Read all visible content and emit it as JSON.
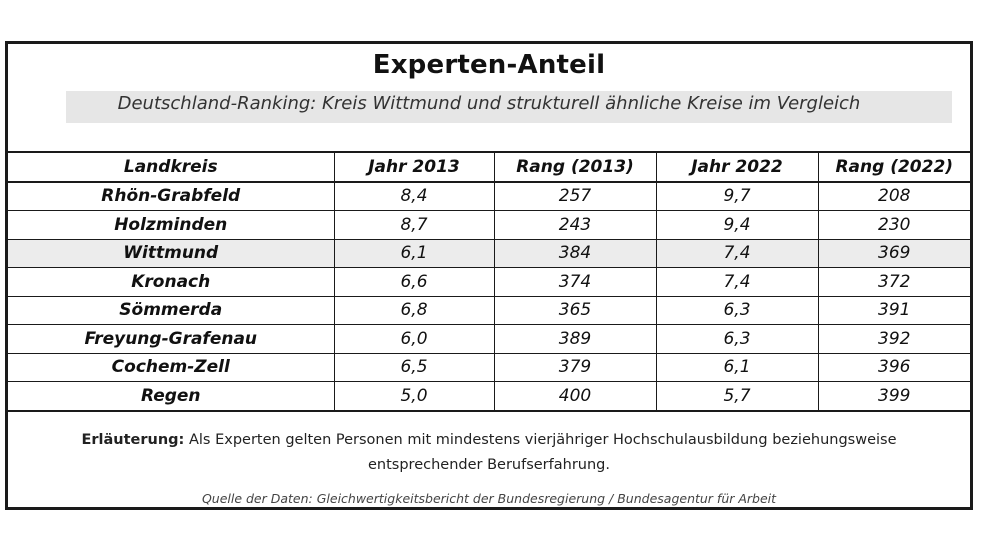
{
  "header": {
    "title": "Experten-Anteil",
    "subtitle": "Deutschland-Ranking: Kreis Wittmund und strukturell ähnliche Kreise im Vergleich"
  },
  "table": {
    "columns": [
      "Landkreis",
      "Jahr 2013",
      "Rang (2013)",
      "Jahr 2022",
      "Rang (2022)"
    ],
    "rows": [
      [
        "Rhön-Grabfeld",
        "8,4",
        "257",
        "9,7",
        "208"
      ],
      [
        "Holzminden",
        "8,7",
        "243",
        "9,4",
        "230"
      ],
      [
        "Wittmund",
        "6,1",
        "384",
        "7,4",
        "369"
      ],
      [
        "Kronach",
        "6,6",
        "374",
        "7,4",
        "372"
      ],
      [
        "Sömmerda",
        "6,8",
        "365",
        "6,3",
        "391"
      ],
      [
        "Freyung-Grafenau",
        "6,0",
        "389",
        "6,3",
        "392"
      ],
      [
        "Cochem-Zell",
        "6,5",
        "379",
        "6,1",
        "396"
      ],
      [
        "Regen",
        "5,0",
        "400",
        "5,7",
        "399"
      ]
    ],
    "highlighted_row": "Wittmund",
    "highlight_color": "#ececec"
  },
  "footer": {
    "note_label": "Erläuterung:",
    "note_line1": "Als Experten gelten Personen mit mindestens vierjähriger Hochschulausbildung beziehungsweise",
    "note_line2": "entsprechender Berufserfahrung.",
    "source": "Quelle der Daten: Gleichwertigkeitsbericht der Bundesregierung / Bundesagentur für Arbeit"
  }
}
